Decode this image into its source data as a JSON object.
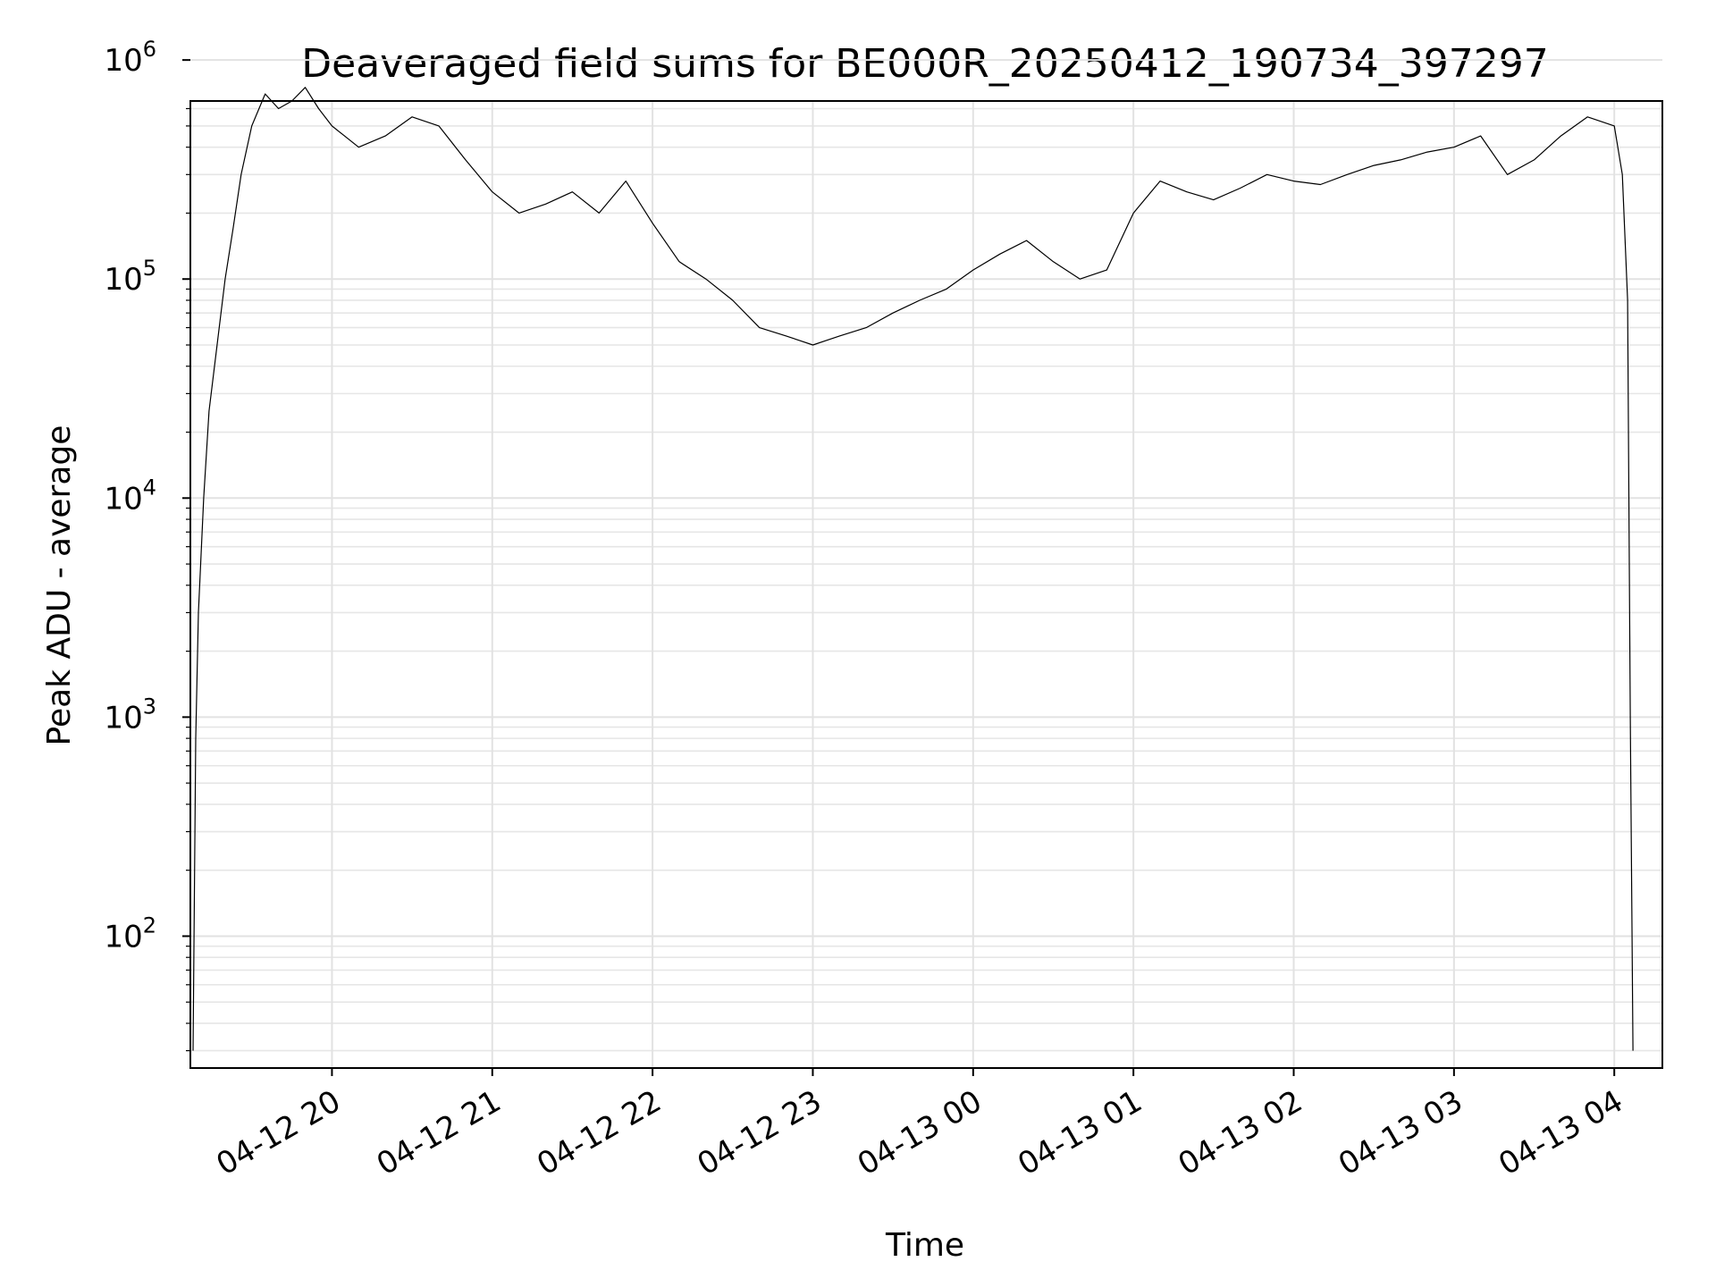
{
  "chart_data": {
    "type": "line",
    "title": "Deaveraged field sums for BE000R_20250412_190734_397297",
    "xlabel": "Time",
    "ylabel": "Peak ADU - average",
    "yscale": "log",
    "ylim": [
      25,
      650000
    ],
    "xlim": [
      "2025-04-12 19:07",
      "2025-04-13 04:18"
    ],
    "grid": true,
    "x_ticks": [
      {
        "value": "2025-04-12 20:00",
        "label": "04-12 20"
      },
      {
        "value": "2025-04-12 21:00",
        "label": "04-12 21"
      },
      {
        "value": "2025-04-12 22:00",
        "label": "04-12 22"
      },
      {
        "value": "2025-04-12 23:00",
        "label": "04-12 23"
      },
      {
        "value": "2025-04-13 00:00",
        "label": "04-13 00"
      },
      {
        "value": "2025-04-13 01:00",
        "label": "04-13 01"
      },
      {
        "value": "2025-04-13 02:00",
        "label": "04-13 02"
      },
      {
        "value": "2025-04-13 03:00",
        "label": "04-13 03"
      },
      {
        "value": "2025-04-13 04:00",
        "label": "04-13 04"
      }
    ],
    "y_ticks": [
      {
        "value": 100,
        "base": "10",
        "exp": "2"
      },
      {
        "value": 1000,
        "base": "10",
        "exp": "3"
      },
      {
        "value": 10000,
        "base": "10",
        "exp": "4"
      },
      {
        "value": 100000,
        "base": "10",
        "exp": "5"
      },
      {
        "value": 1000000,
        "base": "10",
        "exp": "6"
      }
    ],
    "series": [
      {
        "color": "#000000",
        "x": [
          "2025-04-12 19:08",
          "2025-04-12 19:09",
          "2025-04-12 19:10",
          "2025-04-12 19:12",
          "2025-04-12 19:14",
          "2025-04-12 19:17",
          "2025-04-12 19:20",
          "2025-04-12 19:23",
          "2025-04-12 19:26",
          "2025-04-12 19:30",
          "2025-04-12 19:35",
          "2025-04-12 19:40",
          "2025-04-12 19:45",
          "2025-04-12 19:50",
          "2025-04-12 19:55",
          "2025-04-12 20:00",
          "2025-04-12 20:10",
          "2025-04-12 20:20",
          "2025-04-12 20:30",
          "2025-04-12 20:40",
          "2025-04-12 20:50",
          "2025-04-12 21:00",
          "2025-04-12 21:10",
          "2025-04-12 21:20",
          "2025-04-12 21:30",
          "2025-04-12 21:40",
          "2025-04-12 21:50",
          "2025-04-12 22:00",
          "2025-04-12 22:10",
          "2025-04-12 22:20",
          "2025-04-12 22:30",
          "2025-04-12 22:40",
          "2025-04-12 22:50",
          "2025-04-12 23:00",
          "2025-04-12 23:10",
          "2025-04-12 23:20",
          "2025-04-12 23:30",
          "2025-04-12 23:40",
          "2025-04-12 23:50",
          "2025-04-13 00:00",
          "2025-04-13 00:10",
          "2025-04-13 00:20",
          "2025-04-13 00:30",
          "2025-04-13 00:40",
          "2025-04-13 00:50",
          "2025-04-13 01:00",
          "2025-04-13 01:10",
          "2025-04-13 01:20",
          "2025-04-13 01:30",
          "2025-04-13 01:40",
          "2025-04-13 01:50",
          "2025-04-13 02:00",
          "2025-04-13 02:10",
          "2025-04-13 02:20",
          "2025-04-13 02:30",
          "2025-04-13 02:40",
          "2025-04-13 02:50",
          "2025-04-13 03:00",
          "2025-04-13 03:10",
          "2025-04-13 03:20",
          "2025-04-13 03:30",
          "2025-04-13 03:40",
          "2025-04-13 03:50",
          "2025-04-13 04:00",
          "2025-04-13 04:03",
          "2025-04-13 04:05",
          "2025-04-13 04:06",
          "2025-04-13 04:07"
        ],
        "y": [
          30,
          800,
          3000,
          10000,
          25000,
          50000,
          100000,
          170000,
          300000,
          500000,
          700000,
          600000,
          650000,
          750000,
          600000,
          500000,
          400000,
          450000,
          550000,
          500000,
          350000,
          250000,
          200000,
          220000,
          250000,
          200000,
          280000,
          180000,
          120000,
          100000,
          80000,
          60000,
          55000,
          50000,
          55000,
          60000,
          70000,
          80000,
          90000,
          110000,
          130000,
          150000,
          120000,
          100000,
          110000,
          200000,
          280000,
          250000,
          230000,
          260000,
          300000,
          280000,
          270000,
          300000,
          330000,
          350000,
          380000,
          400000,
          450000,
          300000,
          350000,
          450000,
          550000,
          500000,
          300000,
          80000,
          1000,
          30
        ]
      }
    ]
  }
}
